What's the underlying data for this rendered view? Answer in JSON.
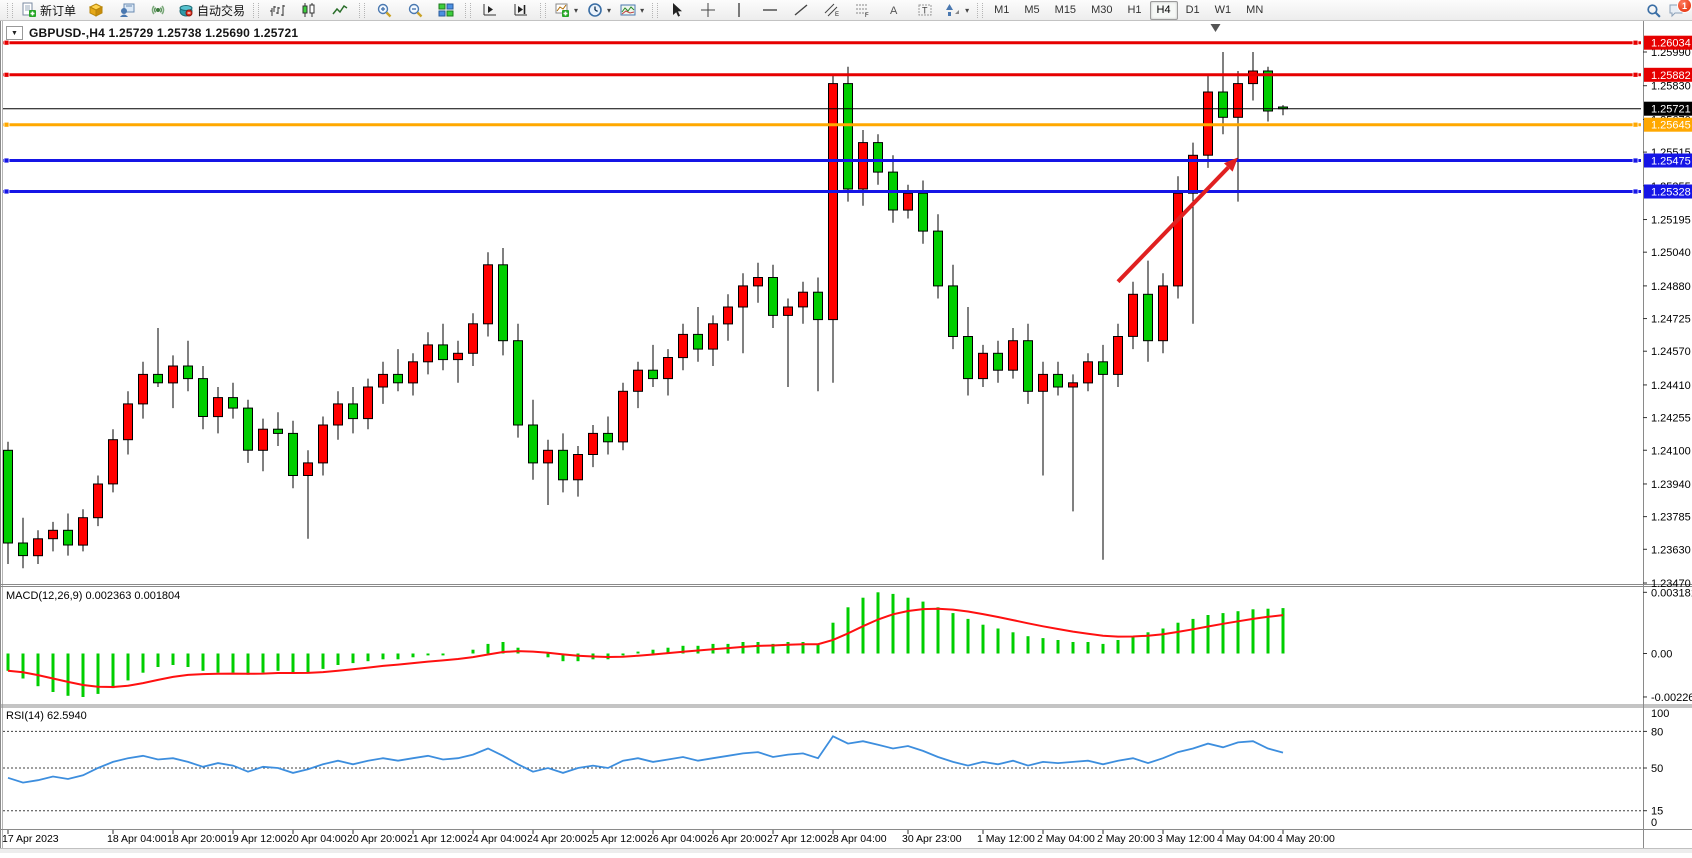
{
  "toolbar": {
    "new_order_label": "新订单",
    "autotrade_label": "自动交易",
    "icon_buttons_left": [
      "new-order",
      "toolbox",
      "data-window",
      "signals",
      "autotrading"
    ],
    "chart_type_buttons": [
      "bar-chart",
      "candlestick-chart",
      "line-chart"
    ],
    "zoom_buttons": [
      "zoom-in",
      "zoom-out",
      "tile-windows"
    ],
    "scroll_buttons": [
      "auto-scroll",
      "chart-shift"
    ],
    "dropdown_buttons": [
      "indicators-add",
      "periods",
      "templates"
    ],
    "draw_buttons": [
      "cursor",
      "crosshair",
      "vertical-line",
      "horizontal-line",
      "trendline",
      "equidistant-channel",
      "fibonacci",
      "text",
      "text-label",
      "arrows"
    ],
    "timeframes": [
      "M1",
      "M5",
      "M15",
      "M30",
      "H1",
      "H4",
      "D1",
      "W1",
      "MN"
    ],
    "active_timeframe": "H4",
    "notification_count": "1"
  },
  "chart": {
    "title": "GBPUSD-,H4 1.25729 1.25738 1.25690 1.25721"
  },
  "chart_data": {
    "type": "candlestick",
    "symbol": "GBPUSD-",
    "timeframe": "H4",
    "quote": {
      "open": "1.25729",
      "high": "1.25738",
      "low": "1.25690",
      "close": "1.25721"
    },
    "bull_color": "#ff0000",
    "bear_color": "#00ce00",
    "ylim": [
      1.2347,
      1.26118
    ],
    "y_axis_ticks": [
      "1.25990",
      "1.25830",
      "1.25670",
      "1.25515",
      "1.25355",
      "1.25195",
      "1.25040",
      "1.24880",
      "1.24725",
      "1.24570",
      "1.24410",
      "1.24255",
      "1.24100",
      "1.23940",
      "1.23785",
      "1.23630",
      "1.23470"
    ],
    "x_labels": [
      {
        "label": "17 Apr 2023",
        "index": 0
      },
      {
        "label": "18 Apr 04:00",
        "index": 7
      },
      {
        "label": "18 Apr 20:00",
        "index": 11
      },
      {
        "label": "19 Apr 12:00",
        "index": 15
      },
      {
        "label": "20 Apr 04:00",
        "index": 19
      },
      {
        "label": "20 Apr 20:00",
        "index": 23
      },
      {
        "label": "21 Apr 12:00",
        "index": 27
      },
      {
        "label": "24 Apr 04:00",
        "index": 31
      },
      {
        "label": "24 Apr 20:00",
        "index": 35
      },
      {
        "label": "25 Apr 12:00",
        "index": 39
      },
      {
        "label": "26 Apr 04:00",
        "index": 43
      },
      {
        "label": "26 Apr 20:00",
        "index": 47
      },
      {
        "label": "27 Apr 12:00",
        "index": 51
      },
      {
        "label": "28 Apr 04:00",
        "index": 55
      },
      {
        "label": "30 Apr 23:00",
        "index": 60
      },
      {
        "label": "1 May 12:00",
        "index": 65
      },
      {
        "label": "2 May 04:00",
        "index": 69
      },
      {
        "label": "2 May 20:00",
        "index": 73
      },
      {
        "label": "3 May 12:00",
        "index": 77
      },
      {
        "label": "4 May 04:00",
        "index": 81
      },
      {
        "label": "4 May 20:00",
        "index": 85
      }
    ],
    "candles": [
      [
        1.241,
        1.2414,
        1.2356,
        1.2366
      ],
      [
        1.2366,
        1.2378,
        1.2354,
        1.236
      ],
      [
        1.236,
        1.2372,
        1.2356,
        1.2368
      ],
      [
        1.2368,
        1.2376,
        1.2362,
        1.2372
      ],
      [
        1.2372,
        1.238,
        1.236,
        1.2365
      ],
      [
        1.2365,
        1.2382,
        1.2362,
        1.2378
      ],
      [
        1.2378,
        1.2398,
        1.2374,
        1.2394
      ],
      [
        1.2394,
        1.242,
        1.239,
        1.2415
      ],
      [
        1.2415,
        1.2438,
        1.2408,
        1.2432
      ],
      [
        1.2432,
        1.2452,
        1.2425,
        1.2446
      ],
      [
        1.2446,
        1.2468,
        1.244,
        1.2442
      ],
      [
        1.2442,
        1.2455,
        1.243,
        1.245
      ],
      [
        1.245,
        1.2462,
        1.2438,
        1.2444
      ],
      [
        1.2444,
        1.245,
        1.242,
        1.2426
      ],
      [
        1.2426,
        1.244,
        1.2418,
        1.2435
      ],
      [
        1.2435,
        1.2442,
        1.2425,
        1.243
      ],
      [
        1.243,
        1.2434,
        1.2404,
        1.241
      ],
      [
        1.241,
        1.2425,
        1.24,
        1.242
      ],
      [
        1.242,
        1.2428,
        1.2412,
        1.2418
      ],
      [
        1.2418,
        1.2424,
        1.2392,
        1.2398
      ],
      [
        1.2398,
        1.241,
        1.2368,
        1.2404
      ],
      [
        1.2404,
        1.2426,
        1.2398,
        1.2422
      ],
      [
        1.2422,
        1.2438,
        1.2415,
        1.2432
      ],
      [
        1.2432,
        1.244,
        1.2418,
        1.2425
      ],
      [
        1.2425,
        1.2444,
        1.242,
        1.244
      ],
      [
        1.244,
        1.2452,
        1.2432,
        1.2446
      ],
      [
        1.2446,
        1.2458,
        1.2438,
        1.2442
      ],
      [
        1.2442,
        1.2456,
        1.2436,
        1.2452
      ],
      [
        1.2452,
        1.2466,
        1.2446,
        1.246
      ],
      [
        1.246,
        1.247,
        1.2448,
        1.2453
      ],
      [
        1.2453,
        1.2462,
        1.2442,
        1.2456
      ],
      [
        1.2456,
        1.2475,
        1.245,
        1.247
      ],
      [
        1.247,
        1.2504,
        1.2464,
        1.2498
      ],
      [
        1.2498,
        1.2506,
        1.2455,
        1.2462
      ],
      [
        1.2462,
        1.247,
        1.2416,
        1.2422
      ],
      [
        1.2422,
        1.2434,
        1.2396,
        1.2404
      ],
      [
        1.2404,
        1.2415,
        1.2384,
        1.241
      ],
      [
        1.241,
        1.2418,
        1.239,
        1.2396
      ],
      [
        1.2396,
        1.2412,
        1.2388,
        1.2408
      ],
      [
        1.2408,
        1.2422,
        1.2402,
        1.2418
      ],
      [
        1.2418,
        1.2426,
        1.2408,
        1.2414
      ],
      [
        1.2414,
        1.2442,
        1.241,
        1.2438
      ],
      [
        1.2438,
        1.2452,
        1.243,
        1.2448
      ],
      [
        1.2448,
        1.246,
        1.244,
        1.2444
      ],
      [
        1.2444,
        1.2458,
        1.2436,
        1.2454
      ],
      [
        1.2454,
        1.247,
        1.2448,
        1.2465
      ],
      [
        1.2465,
        1.2478,
        1.2452,
        1.2458
      ],
      [
        1.2458,
        1.2474,
        1.245,
        1.247
      ],
      [
        1.247,
        1.2484,
        1.2462,
        1.2478
      ],
      [
        1.2478,
        1.2494,
        1.2456,
        1.2488
      ],
      [
        1.2488,
        1.2499,
        1.248,
        1.2492
      ],
      [
        1.2492,
        1.2498,
        1.2468,
        1.2474
      ],
      [
        1.2474,
        1.2482,
        1.244,
        1.2478
      ],
      [
        1.2478,
        1.249,
        1.247,
        1.2485
      ],
      [
        1.2485,
        1.2492,
        1.2438,
        1.2472
      ],
      [
        1.2472,
        1.2588,
        1.2442,
        1.2584
      ],
      [
        1.2584,
        1.2592,
        1.2528,
        1.2534
      ],
      [
        1.2534,
        1.2562,
        1.2526,
        1.2556
      ],
      [
        1.2556,
        1.256,
        1.2536,
        1.2542
      ],
      [
        1.2542,
        1.255,
        1.2518,
        1.2524
      ],
      [
        1.2524,
        1.2536,
        1.252,
        1.2532
      ],
      [
        1.2532,
        1.2538,
        1.2508,
        1.2514
      ],
      [
        1.2514,
        1.2522,
        1.2482,
        1.2488
      ],
      [
        1.2488,
        1.2498,
        1.2458,
        1.2464
      ],
      [
        1.2464,
        1.2478,
        1.2436,
        1.2444
      ],
      [
        1.2444,
        1.246,
        1.244,
        1.2456
      ],
      [
        1.2456,
        1.2462,
        1.2442,
        1.2448
      ],
      [
        1.2448,
        1.2468,
        1.2444,
        1.2462
      ],
      [
        1.2462,
        1.247,
        1.2432,
        1.2438
      ],
      [
        1.2438,
        1.2452,
        1.2398,
        1.2446
      ],
      [
        1.2446,
        1.2452,
        1.2436,
        1.244
      ],
      [
        1.244,
        1.2446,
        1.2381,
        1.2442
      ],
      [
        1.2442,
        1.2456,
        1.2438,
        1.2452
      ],
      [
        1.2452,
        1.246,
        1.2358,
        1.2446
      ],
      [
        1.2446,
        1.247,
        1.244,
        1.2464
      ],
      [
        1.2464,
        1.249,
        1.2458,
        1.2484
      ],
      [
        1.2484,
        1.25,
        1.2452,
        1.2462
      ],
      [
        1.2462,
        1.2494,
        1.2456,
        1.2488
      ],
      [
        1.2488,
        1.254,
        1.2482,
        1.2532
      ],
      [
        1.2532,
        1.2556,
        1.247,
        1.255
      ],
      [
        1.255,
        1.2588,
        1.2544,
        1.258
      ],
      [
        1.258,
        1.2599,
        1.256,
        1.2568
      ],
      [
        1.2568,
        1.259,
        1.2528,
        1.2584
      ],
      [
        1.2584,
        1.2599,
        1.2576,
        1.259
      ],
      [
        1.259,
        1.2592,
        1.2566,
        1.2571
      ],
      [
        1.25729,
        1.25738,
        1.2569,
        1.25721
      ]
    ],
    "price_lines": [
      {
        "name": "resistance-line-1",
        "price": 1.26034,
        "label": "1.26034",
        "color": "#e60000",
        "width": 3,
        "handles": true
      },
      {
        "name": "resistance-line-2",
        "price": 1.25882,
        "label": "1.25882",
        "color": "#e60000",
        "width": 3,
        "handles": true
      },
      {
        "name": "bid-price-line",
        "price": 1.25721,
        "label": "1.25721",
        "color": "#000000",
        "width": 1,
        "handles": false
      },
      {
        "name": "pivot-line",
        "price": 1.25645,
        "label": "1.25645",
        "color": "#ffa800",
        "width": 3,
        "handles": true
      },
      {
        "name": "support-line-1",
        "price": 1.25475,
        "label": "1.25475",
        "color": "#1515e6",
        "width": 3,
        "handles": true
      },
      {
        "name": "support-line-2",
        "price": 1.25328,
        "label": "1.25328",
        "color": "#1515e6",
        "width": 3,
        "handles": true
      }
    ],
    "trend_arrow": {
      "color": "#e02020",
      "from_index": 74,
      "from_price": 1.249,
      "to_index": 82,
      "to_price": 1.2549
    },
    "shift_marker_index": 80.5,
    "indicators": {
      "macd": {
        "label": "MACD(12,26,9)",
        "value": "0.002363",
        "signal_value": "0.001804",
        "scale_ticks": [
          "0.003181",
          "0.00",
          "-0.00226"
        ],
        "scale_values": [
          0.003181,
          0.0,
          -0.00226
        ],
        "histogram_color": "#00ce00",
        "signal_color": "#ff1010",
        "histogram": [
          -0.0009,
          -0.0013,
          -0.0017,
          -0.002,
          -0.0022,
          -0.00226,
          -0.0021,
          -0.0018,
          -0.0014,
          -0.001,
          -0.0007,
          -0.0006,
          -0.0007,
          -0.0009,
          -0.001,
          -0.001,
          -0.0011,
          -0.001,
          -0.0009,
          -0.001,
          -0.001,
          -0.0008,
          -0.0006,
          -0.0005,
          -0.0004,
          -0.0003,
          -0.0003,
          -0.0002,
          -0.0001,
          -0.0001,
          0.0,
          0.0002,
          0.0005,
          0.0006,
          0.0003,
          0.0,
          -0.0002,
          -0.0004,
          -0.0004,
          -0.0003,
          -0.0003,
          -0.0001,
          0.0001,
          0.0002,
          0.0003,
          0.0004,
          0.0004,
          0.0005,
          0.0005,
          0.0006,
          0.0006,
          0.0005,
          0.0006,
          0.0006,
          0.0005,
          0.0016,
          0.0024,
          0.0029,
          0.00318,
          0.0031,
          0.0029,
          0.0027,
          0.0024,
          0.0021,
          0.0018,
          0.0015,
          0.0013,
          0.0011,
          0.0009,
          0.0008,
          0.0007,
          0.0006,
          0.0006,
          0.0005,
          0.0007,
          0.0009,
          0.0011,
          0.0013,
          0.0016,
          0.0018,
          0.002,
          0.0021,
          0.0022,
          0.0023,
          0.00233,
          0.002363
        ]
      },
      "rsi": {
        "label": "RSI(14)",
        "value": "62.5940",
        "levels": [
          80,
          50,
          15
        ],
        "scale_ticks": [
          "100",
          "80",
          "50",
          "15",
          "0"
        ],
        "line_color": "#3d8ede",
        "values": [
          42,
          38,
          40,
          43,
          41,
          44,
          50,
          55,
          58,
          60,
          57,
          58,
          55,
          51,
          54,
          52,
          47,
          51,
          50,
          46,
          49,
          53,
          56,
          53,
          56,
          58,
          56,
          58,
          60,
          57,
          58,
          61,
          66,
          60,
          53,
          47,
          50,
          46,
          50,
          52,
          50,
          56,
          58,
          55,
          57,
          59,
          56,
          58,
          60,
          62,
          63,
          59,
          61,
          62,
          58,
          76,
          70,
          72,
          69,
          66,
          68,
          64,
          59,
          55,
          52,
          55,
          53,
          56,
          52,
          55,
          54,
          55,
          56,
          53,
          56,
          58,
          54,
          58,
          63,
          66,
          70,
          67,
          71,
          72,
          66,
          62.594
        ]
      }
    }
  }
}
